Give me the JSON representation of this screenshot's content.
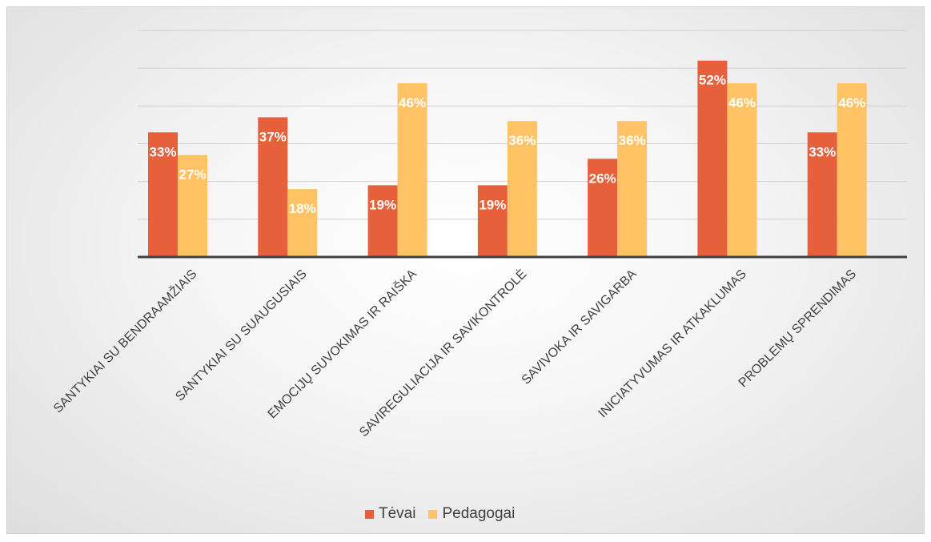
{
  "chart_data": {
    "type": "bar",
    "categories": [
      "SANTYKIAI SU BENDRAAMŽIAIS",
      "SANTYKIAI SU SUAUGUSIAIS",
      "EMOCIJŲ SUVOKIMAS IR RAIŠKA",
      "SAVIREGULIACIJA IR SAVIKONTROLĖ",
      "SAVIVOKA IR SAVIGARBA",
      "INICIATYVUMAS IR ATKAKLUMAS",
      "PROBLEMŲ SPRENDIMAS"
    ],
    "series": [
      {
        "name": "Tėvai",
        "color": "#E5603B",
        "values": [
          33,
          37,
          19,
          19,
          26,
          52,
          33
        ],
        "labels": [
          "33%",
          "37%",
          "19%",
          "19%",
          "26%",
          "52%",
          "33%"
        ]
      },
      {
        "name": "Pedagogai",
        "color": "#FFC366",
        "values": [
          27,
          18,
          46,
          36,
          36,
          46,
          46
        ],
        "labels": [
          "27%",
          "18%",
          "46%",
          "36%",
          "36%",
          "46%",
          "46%"
        ]
      }
    ],
    "ylim": [
      0,
      60
    ],
    "grid": true,
    "legend_position": "bottom",
    "data_label_color": "#ffffff",
    "gridline_color": "#d0d0d0",
    "axis_color": "#404040"
  },
  "legend": {
    "items": [
      {
        "label": "Tėvai",
        "color": "#E5603B"
      },
      {
        "label": "Pedagogai",
        "color": "#FFC366"
      }
    ]
  }
}
